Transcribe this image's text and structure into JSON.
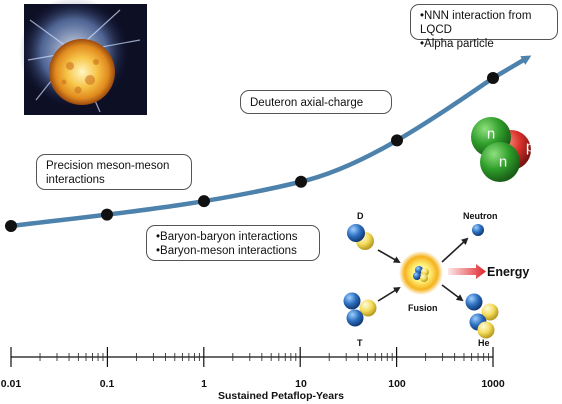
{
  "palette": {
    "curve": "#4d82ac",
    "point": "#111111",
    "arrow_red": "#e0242a",
    "neutron_green": "#2f9e2a",
    "proton_red": "#d9302b"
  },
  "callouts": {
    "nnn_alpha": [
      "NNN interaction from LQCD",
      "Alpha particle"
    ],
    "deuteron": "Deuteron axial-charge",
    "meson": "Precision meson-meson interactions",
    "baryon": [
      "Baryon-baryon interactions",
      "Baryon-meson interactions"
    ]
  },
  "nucleon_labels": {
    "n_top": "n",
    "n_bottom": "n",
    "p": "p"
  },
  "fusion": {
    "d_label": "D",
    "t_label": "T",
    "center_label": "Fusion",
    "neutron_label": "Neutron",
    "he_label": "He",
    "energy_label": "Energy"
  },
  "axis": {
    "title": "Sustained Petaflop-Years",
    "major_ticks": [
      "0.01",
      "0.1",
      "1",
      "10",
      "100",
      "1000"
    ]
  },
  "star_image": {
    "icon": "sun-flare-icon"
  }
}
